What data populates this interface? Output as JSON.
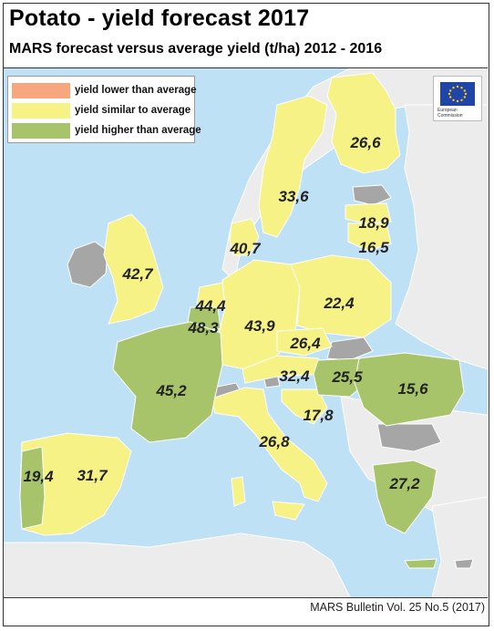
{
  "title": "Potato - yield forecast 2017",
  "subtitle": "MARS forecast versus average yield (t/ha) 2012 - 2016",
  "legend": [
    {
      "label": "yield lower than average",
      "color": "#f7a67e"
    },
    {
      "label": "yield similar to average",
      "color": "#f6f285"
    },
    {
      "label": "yield higher than average",
      "color": "#a7c46a"
    }
  ],
  "colors": {
    "sea": "#bfe1f6",
    "non_eu_land": "#ececec",
    "no_data": "#a6a6a6",
    "similar": "#f6f285",
    "higher": "#a7c46a",
    "borders": "#ffffff"
  },
  "logo": {
    "name": "european-commission-logo",
    "text": "European Commission"
  },
  "regions": [
    {
      "name": "Finland",
      "value": "26,6",
      "category": "similar"
    },
    {
      "name": "Sweden",
      "value": "33,6",
      "category": "similar"
    },
    {
      "name": "Latvia",
      "value": "18,9",
      "category": "similar"
    },
    {
      "name": "Lithuania",
      "value": "16,5",
      "category": "similar"
    },
    {
      "name": "Denmark",
      "value": "40,7",
      "category": "similar"
    },
    {
      "name": "United Kingdom",
      "value": "42,7",
      "category": "similar"
    },
    {
      "name": "Netherlands",
      "value": "44,4",
      "category": "similar"
    },
    {
      "name": "Belgium",
      "value": "48,3",
      "category": "higher"
    },
    {
      "name": "Germany",
      "value": "43,9",
      "category": "similar"
    },
    {
      "name": "Poland",
      "value": "22,4",
      "category": "similar"
    },
    {
      "name": "Czech Republic",
      "value": "26,4",
      "category": "similar"
    },
    {
      "name": "France",
      "value": "45,2",
      "category": "higher"
    },
    {
      "name": "Austria",
      "value": "32,4",
      "category": "similar"
    },
    {
      "name": "Hungary",
      "value": "25,5",
      "category": "higher"
    },
    {
      "name": "Romania",
      "value": "15,6",
      "category": "higher"
    },
    {
      "name": "Croatia",
      "value": "17,8",
      "category": "similar"
    },
    {
      "name": "Italy",
      "value": "26,8",
      "category": "similar"
    },
    {
      "name": "Portugal",
      "value": "19,4",
      "category": "similar"
    },
    {
      "name": "Spain",
      "value": "31,7",
      "category": "similar"
    },
    {
      "name": "Greece",
      "value": "27,2",
      "category": "higher"
    }
  ],
  "footer": "MARS Bulletin Vol. 25 No.5 (2017)"
}
